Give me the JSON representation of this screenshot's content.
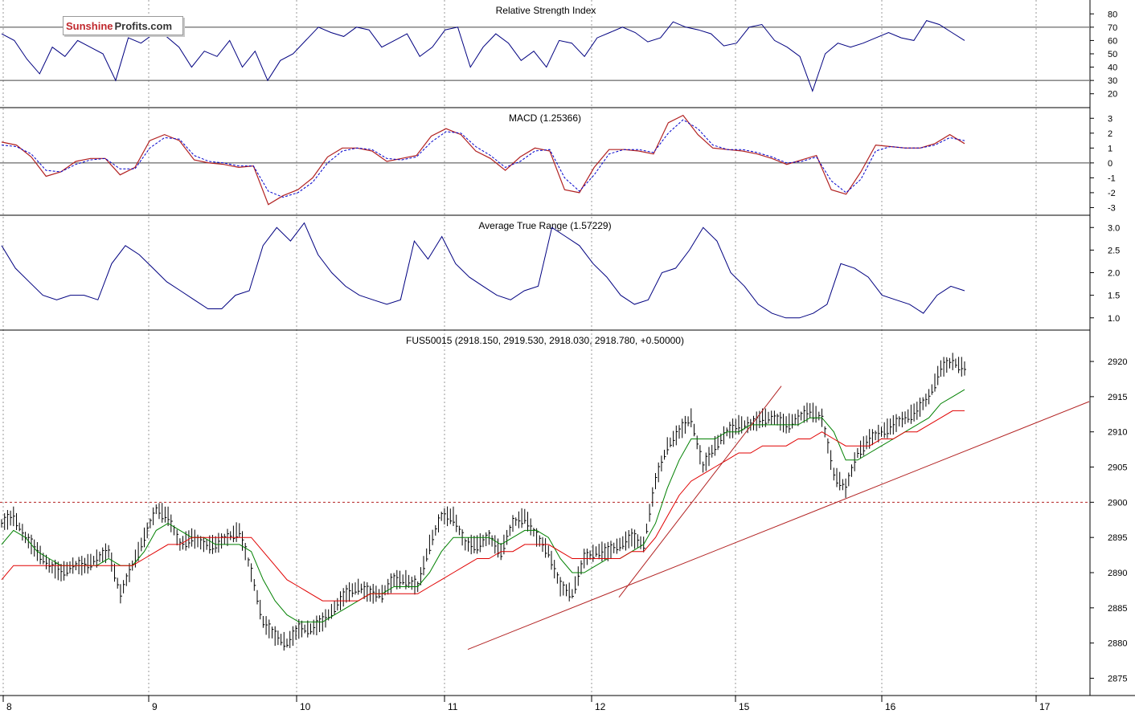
{
  "logo": {
    "part1": "Sunshine",
    "part2": "Profits.com"
  },
  "colors": {
    "price": "#000000",
    "rsi": "#000080",
    "macd": "#b22222",
    "macd_signal": "#0000cc",
    "atr": "#000080",
    "ma_fast": "#008000",
    "ma_slow": "#e00000",
    "trendline": "#b22222",
    "support": "#b22222",
    "grid": "#9a9a9a"
  },
  "chart_data": [
    {
      "type": "line",
      "title": "Relative Strength Index",
      "ylim": [
        12,
        88
      ],
      "yticks": [
        80,
        70,
        60,
        50,
        40,
        30,
        20
      ],
      "reference_lines": [
        70,
        30
      ],
      "series": [
        {
          "values": [
            65,
            60,
            46,
            35,
            55,
            48,
            60,
            55,
            50,
            30,
            62,
            58,
            65,
            63,
            55,
            40,
            52,
            48,
            60,
            40,
            52,
            30,
            45,
            50,
            60,
            70,
            66,
            63,
            70,
            68,
            55,
            60,
            65,
            48,
            55,
            68,
            70,
            40,
            55,
            65,
            58,
            45,
            52,
            40,
            60,
            58,
            48,
            62,
            66,
            70,
            66,
            59,
            62,
            74,
            70,
            68,
            65,
            56,
            58,
            70,
            72,
            60,
            55,
            48,
            22,
            50,
            58,
            55,
            58,
            62,
            66,
            62,
            60,
            75,
            72,
            66,
            60
          ]
        }
      ]
    },
    {
      "type": "line",
      "title": "MACD (1.25366)",
      "ylim": [
        -3.3,
        3.5
      ],
      "yticks": [
        3,
        2,
        1,
        0,
        -1,
        -2,
        -3
      ],
      "reference_lines": [
        0
      ],
      "series": [
        {
          "values": [
            1.4,
            1.2,
            0.4,
            -0.9,
            -0.6,
            0.1,
            0.3,
            0.3,
            -0.8,
            -0.3,
            1.5,
            1.9,
            1.5,
            0.2,
            0.0,
            -0.1,
            -0.3,
            -0.2,
            -2.8,
            -2.2,
            -1.8,
            -1.0,
            0.4,
            1.0,
            1.0,
            0.8,
            0.1,
            0.3,
            0.5,
            1.8,
            2.3,
            1.9,
            0.8,
            0.3,
            -0.5,
            0.4,
            1.0,
            0.8,
            -1.8,
            -2.0,
            -0.3,
            0.9,
            0.9,
            0.8,
            0.6,
            2.7,
            3.2,
            1.9,
            1.0,
            0.9,
            0.8,
            0.6,
            0.3,
            -0.1,
            0.2,
            0.5,
            -1.8,
            -2.1,
            -0.6,
            1.2,
            1.1,
            1.0,
            1.0,
            1.3,
            1.9,
            1.3
          ]
        },
        {
          "values": [
            1.2,
            1.1,
            0.6,
            -0.5,
            -0.6,
            -0.1,
            0.2,
            0.3,
            -0.4,
            -0.4,
            1.0,
            1.7,
            1.6,
            0.5,
            0.1,
            0.0,
            -0.2,
            -0.2,
            -1.9,
            -2.3,
            -2.0,
            -1.3,
            0.0,
            0.8,
            1.0,
            0.9,
            0.3,
            0.2,
            0.4,
            1.4,
            2.1,
            2.0,
            1.1,
            0.5,
            -0.3,
            0.1,
            0.8,
            0.9,
            -1.0,
            -1.9,
            -0.8,
            0.6,
            0.9,
            0.9,
            0.7,
            2.0,
            2.9,
            2.3,
            1.2,
            0.9,
            0.9,
            0.7,
            0.4,
            0.0,
            0.1,
            0.4,
            -1.2,
            -2.0,
            -1.1,
            0.8,
            1.1,
            1.0,
            1.0,
            1.2,
            1.7,
            1.5
          ]
        }
      ]
    },
    {
      "type": "line",
      "title": "Average True Range (1.57229)",
      "ylim": [
        0.8,
        3.2
      ],
      "yticks": [
        3.0,
        2.5,
        2.0,
        1.5,
        1.0
      ],
      "series": [
        {
          "values": [
            2.6,
            2.1,
            1.8,
            1.5,
            1.4,
            1.5,
            1.5,
            1.4,
            2.2,
            2.6,
            2.4,
            2.1,
            1.8,
            1.6,
            1.4,
            1.2,
            1.2,
            1.5,
            1.6,
            2.6,
            3.0,
            2.7,
            3.1,
            2.4,
            2.0,
            1.7,
            1.5,
            1.4,
            1.3,
            1.4,
            2.7,
            2.3,
            2.8,
            2.2,
            1.9,
            1.7,
            1.5,
            1.4,
            1.6,
            1.7,
            3.0,
            2.8,
            2.6,
            2.2,
            1.9,
            1.5,
            1.3,
            1.4,
            2.0,
            2.1,
            2.5,
            3.0,
            2.7,
            2.0,
            1.7,
            1.3,
            1.1,
            1.0,
            1.0,
            1.1,
            1.3,
            2.2,
            2.1,
            1.9,
            1.5,
            1.4,
            1.3,
            1.1,
            1.5,
            1.7,
            1.6
          ]
        }
      ]
    },
    {
      "type": "line",
      "title": "FUS50015 (2918.150, 2919.530, 2918.030, 2918.780, +0.50000)",
      "ylim": [
        2873,
        2924
      ],
      "yticks": [
        2920,
        2915,
        2910,
        2905,
        2900,
        2895,
        2890,
        2885,
        2880,
        2875
      ],
      "x_ticks": [
        "8",
        "9",
        "10",
        "11",
        "12",
        "15",
        "16",
        "17"
      ],
      "reference_lines": [
        2900
      ],
      "series": [
        {
          "values": [
            2897,
            2898,
            2895,
            2893,
            2891,
            2890,
            2891,
            2891,
            2892,
            2893,
            2887,
            2891,
            2895,
            2899,
            2898,
            2894,
            2895,
            2894,
            2894,
            2895,
            2896,
            2890,
            2883,
            2881,
            2880,
            2882,
            2882,
            2883,
            2885,
            2887,
            2888,
            2887,
            2887,
            2889,
            2889,
            2888,
            2894,
            2898,
            2898,
            2894,
            2894,
            2895,
            2893,
            2897,
            2898,
            2895,
            2893,
            2888,
            2887,
            2892,
            2893,
            2893,
            2894,
            2895,
            2894,
            2903,
            2908,
            2910,
            2912,
            2905,
            2908,
            2910,
            2911,
            2911,
            2912,
            2912,
            2911,
            2912,
            2913,
            2912,
            2904,
            2902,
            2907,
            2909,
            2910,
            2911,
            2912,
            2913,
            2915,
            2919,
            2920,
            2919
          ]
        },
        {
          "name": "ma-fast",
          "values": [
            2894,
            2896,
            2895,
            2893,
            2892,
            2891,
            2891,
            2891,
            2891,
            2892,
            2891,
            2891,
            2893,
            2896,
            2897,
            2896,
            2895,
            2895,
            2894,
            2894,
            2894,
            2893,
            2889,
            2886,
            2884,
            2883,
            2883,
            2883,
            2884,
            2885,
            2886,
            2887,
            2887,
            2888,
            2888,
            2888,
            2890,
            2893,
            2895,
            2895,
            2895,
            2895,
            2894,
            2895,
            2896,
            2896,
            2895,
            2892,
            2890,
            2890,
            2891,
            2892,
            2892,
            2893,
            2894,
            2897,
            2902,
            2906,
            2909,
            2909,
            2909,
            2910,
            2910,
            2911,
            2911,
            2911,
            2911,
            2911,
            2912,
            2912,
            2910,
            2906,
            2906,
            2907,
            2908,
            2909,
            2910,
            2911,
            2912,
            2914,
            2915,
            2916
          ]
        },
        {
          "name": "ma-slow",
          "values": [
            2889,
            2891,
            2891,
            2891,
            2891,
            2891,
            2891,
            2891,
            2891,
            2891,
            2891,
            2891,
            2892,
            2893,
            2894,
            2894,
            2895,
            2895,
            2895,
            2895,
            2895,
            2895,
            2893,
            2891,
            2889,
            2888,
            2887,
            2886,
            2886,
            2886,
            2886,
            2887,
            2887,
            2887,
            2887,
            2887,
            2888,
            2889,
            2890,
            2891,
            2892,
            2892,
            2893,
            2893,
            2894,
            2894,
            2894,
            2893,
            2892,
            2892,
            2892,
            2892,
            2892,
            2893,
            2893,
            2895,
            2898,
            2901,
            2903,
            2904,
            2905,
            2906,
            2907,
            2907,
            2908,
            2908,
            2908,
            2909,
            2909,
            2910,
            2909,
            2908,
            2908,
            2908,
            2909,
            2909,
            2910,
            2910,
            2911,
            2912,
            2913,
            2913
          ]
        }
      ]
    }
  ]
}
